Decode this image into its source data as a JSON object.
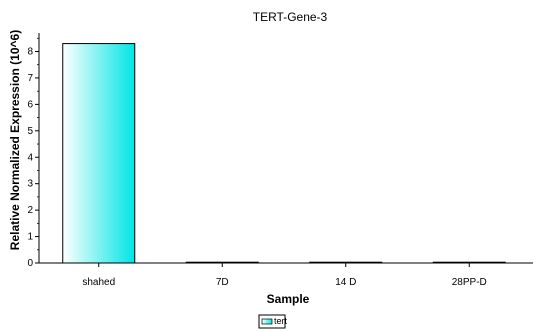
{
  "chart_data": {
    "type": "bar",
    "title": "TERT-Gene-3",
    "xlabel": "Sample",
    "ylabel": "Relative Normalized Expression (10^6)",
    "categories": [
      "shahed",
      "7D",
      "14 D",
      "28PP-D"
    ],
    "series": [
      {
        "name": "tert",
        "values": [
          8.3,
          0.02,
          0.02,
          0.02
        ]
      }
    ],
    "ylim": [
      0,
      8.7
    ],
    "yticks": [
      0,
      1,
      2,
      3,
      4,
      5,
      6,
      7,
      8
    ],
    "grid": false,
    "legend": "bottom-center",
    "colors": {
      "bar_light": "#ffffff",
      "bar_dark": "#00e5e5",
      "bar_outline": "#000000",
      "axis": "#000000"
    }
  }
}
